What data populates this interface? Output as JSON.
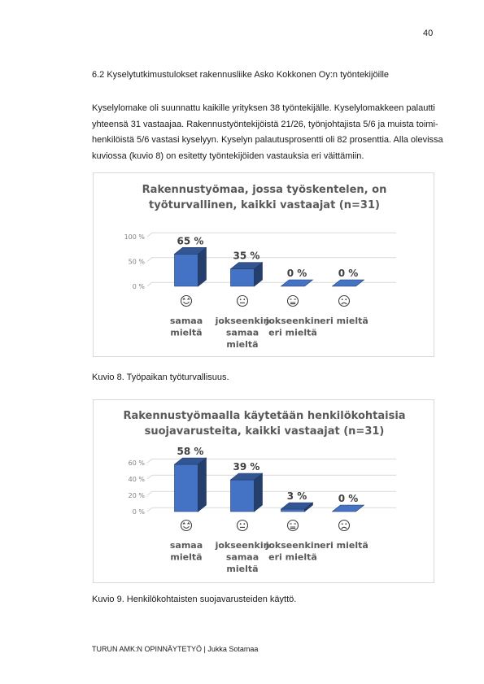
{
  "page_number": "40",
  "section_heading": "6.2 Kyselytutkimustulokset rakennusliike Asko Kokkonen Oy:n työntekijöille",
  "paragraph_lines": [
    "Kyselylomake oli suunnattu kaikille yrityksen 38 työntekijälle. Kyselylomakkeen palautti",
    "yhteensä 31 vastaajaa. Rakennustyöntekijöistä 21/26, työnjohtajista 5/6 ja muista toimi-",
    "henkilöistä 5/6 vastasi kyselyyn. Kyselyn palautusprosentti oli 82 prosenttia. Alla olevissa",
    "kuviossa (kuvio 8) on esitetty työntekijöiden vastauksia eri väittämiin."
  ],
  "chart_data": [
    {
      "type": "bar",
      "title": [
        "Rakennustyömaa, jossa työskentelen, on",
        "työturvallinen, kaikki vastaajat (n=31)"
      ],
      "categories": [
        [
          "samaa",
          "mieltä"
        ],
        [
          "jokseenkin",
          "samaa",
          "mieltä"
        ],
        [
          "jokseenkin",
          "eri mieltä"
        ],
        [
          "eri mieltä"
        ]
      ],
      "category_icons": [
        "smile-icon",
        "neutral-face-icon",
        "frown-icon",
        "sad-face-icon"
      ],
      "values": [
        65,
        35,
        0,
        0
      ],
      "data_labels": [
        "65 %",
        "35 %",
        "0 %",
        "0 %"
      ],
      "y_ticks": [
        0,
        50,
        100
      ],
      "y_tick_labels": [
        "0 %",
        "50 %",
        "100 %"
      ],
      "ylim": [
        0,
        100
      ],
      "grid": true,
      "bar_color": "#4472c4",
      "caption": "Kuvio 8. Työpaikan työturvallisuus."
    },
    {
      "type": "bar",
      "title": [
        "Rakennustyömaalla käytetään henkilökohtaisia",
        "suojavarusteita, kaikki vastaajat (n=31)"
      ],
      "categories": [
        [
          "samaa",
          "mieltä"
        ],
        [
          "jokseenkin",
          "samaa",
          "mieltä"
        ],
        [
          "jokseenkin",
          "eri mieltä"
        ],
        [
          "eri mieltä"
        ]
      ],
      "category_icons": [
        "smile-icon",
        "neutral-face-icon",
        "frown-icon",
        "sad-face-icon"
      ],
      "values": [
        58,
        39,
        3,
        0
      ],
      "data_labels": [
        "58 %",
        "39 %",
        "3 %",
        "0 %"
      ],
      "y_ticks": [
        0,
        20,
        40,
        60
      ],
      "y_tick_labels": [
        "0 %",
        "20 %",
        "40 %",
        "60 %"
      ],
      "ylim": [
        0,
        60
      ],
      "grid": true,
      "bar_color": "#4472c4",
      "caption": "Kuvio 9. Henkilökohtaisten suojavarusteiden käyttö."
    }
  ],
  "footer": "TURUN AMK:N OPINNÄYTETYÖ | Jukka Sotamaa"
}
